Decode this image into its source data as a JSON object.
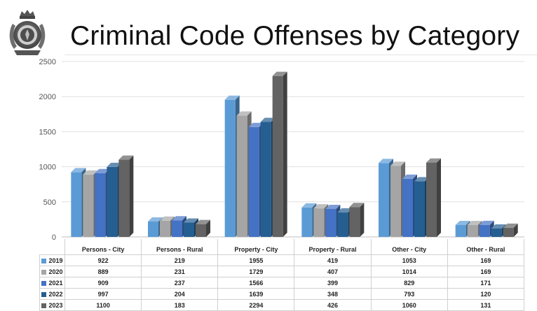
{
  "title": "Criminal Code Offenses by Category",
  "chart_data": {
    "type": "bar",
    "style": "3d-clustered-column",
    "categories": [
      "Persons - City",
      "Persons - Rural",
      "Property - City",
      "Property - Rural",
      "Other - City",
      "Other - Rural"
    ],
    "series": [
      {
        "name": "2019",
        "color": "#5b9bd5",
        "values": [
          922,
          219,
          1955,
          419,
          1053,
          169
        ]
      },
      {
        "name": "2020",
        "color": "#a5a5a5",
        "values": [
          889,
          231,
          1729,
          407,
          1014,
          169
        ]
      },
      {
        "name": "2021",
        "color": "#4472c4",
        "values": [
          909,
          237,
          1566,
          399,
          829,
          171
        ]
      },
      {
        "name": "2022",
        "color": "#255e91",
        "values": [
          997,
          204,
          1639,
          348,
          793,
          120
        ]
      },
      {
        "name": "2023",
        "color": "#636363",
        "values": [
          1100,
          183,
          2294,
          426,
          1060,
          131
        ]
      }
    ],
    "ylim": [
      0,
      2500
    ],
    "yticks": [
      0,
      500,
      1000,
      1500,
      2000,
      2500
    ],
    "grid": true,
    "legend": "data-table-below"
  }
}
